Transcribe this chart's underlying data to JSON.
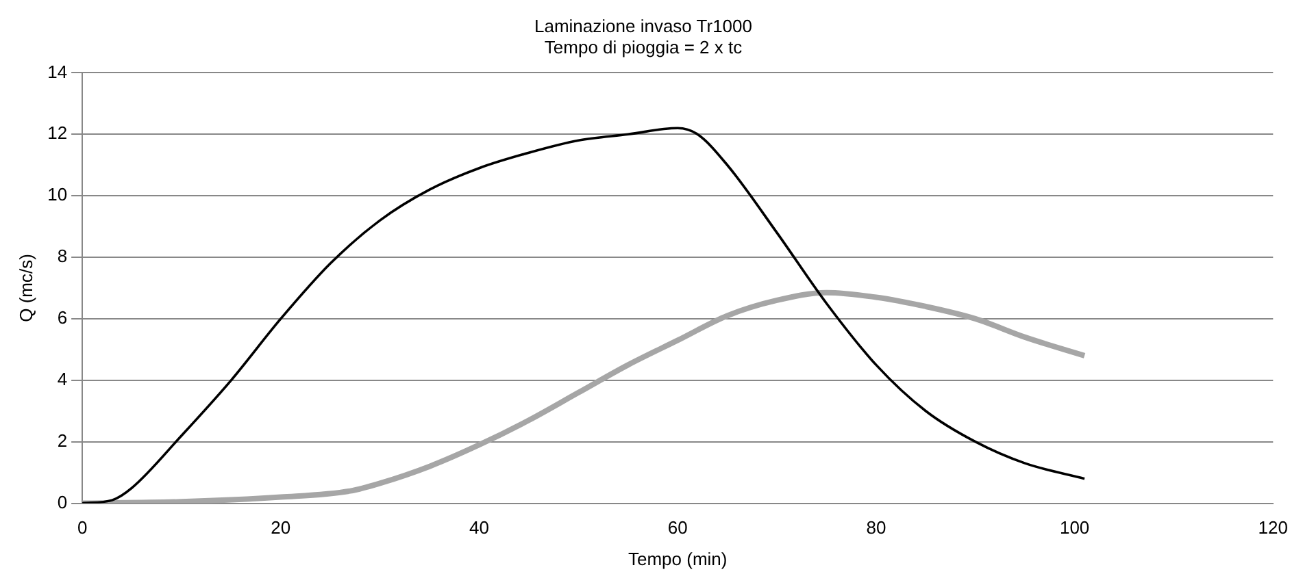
{
  "chart_data": {
    "type": "line",
    "title": "Laminazione invaso Tr1000",
    "subtitle": "Tempo di pioggia = 2 x tc",
    "xlabel": "Tempo (min)",
    "ylabel": "Q (mc/s)",
    "series": [
      {
        "color": "#000000",
        "x": [
          0,
          3,
          5,
          10,
          15,
          20,
          25,
          30,
          35,
          40,
          45,
          50,
          55,
          60,
          62,
          65,
          70,
          75,
          80,
          85,
          90,
          95,
          101
        ],
        "values": [
          0,
          0.1,
          0.5,
          2.2,
          4.0,
          6.0,
          7.8,
          9.2,
          10.2,
          10.9,
          11.4,
          11.8,
          12.0,
          12.2,
          12.0,
          11.0,
          8.8,
          6.5,
          4.5,
          3.0,
          2.0,
          1.3,
          0.8
        ]
      },
      {
        "color": "#a6a6a6",
        "x": [
          0,
          10,
          20,
          27,
          30,
          35,
          40,
          45,
          50,
          55,
          60,
          65,
          70,
          75,
          80,
          85,
          90,
          95,
          101
        ],
        "values": [
          0,
          0.05,
          0.2,
          0.4,
          0.65,
          1.2,
          1.9,
          2.7,
          3.6,
          4.5,
          5.3,
          6.1,
          6.6,
          6.85,
          6.7,
          6.4,
          6.0,
          5.4,
          4.8
        ]
      }
    ],
    "xlim": [
      0,
      120
    ],
    "xticks": [
      0,
      20,
      40,
      60,
      80,
      100,
      120
    ],
    "ylim": [
      0,
      14
    ],
    "yticks": [
      0,
      2,
      4,
      6,
      8,
      10,
      12,
      14
    ],
    "grid": "y",
    "legend": false,
    "marker": "none",
    "line_style": "solid"
  }
}
